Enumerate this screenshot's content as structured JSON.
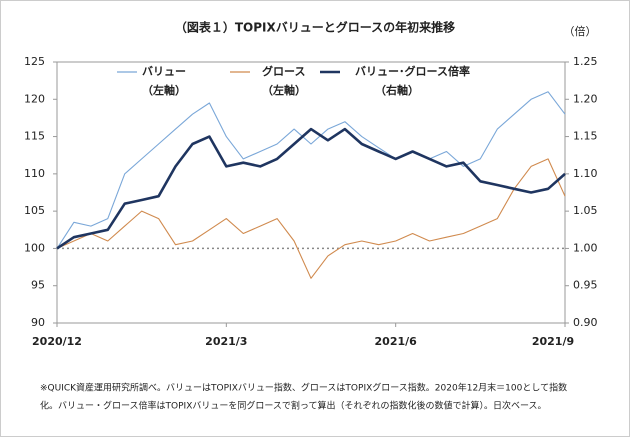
{
  "chart_data": {
    "type": "line",
    "title": "（図表１）TOPIXバリューとグロースの年初来推移",
    "y2_unit": "（倍）",
    "x": [
      0,
      0.3,
      0.6,
      0.9,
      1.2,
      1.5,
      1.8,
      2.1,
      2.4,
      2.7,
      3.0,
      3.3,
      3.6,
      3.9,
      4.2,
      4.5,
      4.8,
      5.1,
      5.4,
      5.7,
      6.0,
      6.3,
      6.6,
      6.9,
      7.2,
      7.5,
      7.8,
      8.1,
      8.4,
      8.7,
      9.0
    ],
    "xlim": [
      0,
      9
    ],
    "xticks": [
      {
        "value": 0,
        "label": "2020/12"
      },
      {
        "value": 3,
        "label": "2021/3"
      },
      {
        "value": 6,
        "label": "2021/6"
      },
      {
        "value": 9,
        "label": "2021/9"
      }
    ],
    "ylim": [
      90,
      125
    ],
    "yticks": [
      90,
      95,
      100,
      105,
      110,
      115,
      120,
      125
    ],
    "y2lim": [
      0.9,
      1.25
    ],
    "y2ticks": [
      {
        "value": 0.9,
        "label": "0.90"
      },
      0.95,
      {
        "value": 1.0,
        "label": "1.00"
      },
      1.05,
      {
        "value": 1.1,
        "label": "1.10"
      },
      1.15,
      {
        "value": 1.2,
        "label": "1.20"
      },
      1.25
    ],
    "reference_line": 100,
    "series": [
      {
        "name": "バリュー",
        "axis_note": "（左軸）",
        "color": "#7aa7d8",
        "values": [
          100,
          103.5,
          103,
          104,
          110,
          112,
          114,
          116,
          118,
          119.5,
          115,
          112,
          113,
          114,
          116,
          114,
          116,
          117,
          115,
          113.5,
          112,
          113,
          112,
          113,
          111,
          112,
          116,
          118,
          120,
          121,
          118
        ]
      },
      {
        "name": "グロース",
        "axis_note": "（左軸）",
        "color": "#d08a4e",
        "values": [
          100,
          101,
          102,
          101,
          103,
          105,
          104,
          100.5,
          101,
          102.5,
          104,
          102,
          103,
          104,
          101,
          96,
          99,
          100.5,
          101,
          100.5,
          101,
          102,
          101,
          101.5,
          102,
          103,
          104,
          108,
          111,
          112,
          107
        ]
      },
      {
        "name": "バリュー･グロース倍率",
        "axis_note": "（右軸）",
        "color": "#1f3560",
        "axis": "y2",
        "values": [
          1.0,
          1.015,
          1.02,
          1.025,
          1.06,
          1.065,
          1.07,
          1.11,
          1.14,
          1.15,
          1.11,
          1.115,
          1.11,
          1.12,
          1.14,
          1.16,
          1.145,
          1.16,
          1.14,
          1.13,
          1.12,
          1.13,
          1.12,
          1.11,
          1.115,
          1.09,
          1.085,
          1.08,
          1.075,
          1.08,
          1.1
        ]
      }
    ],
    "notes": [
      "※QUICK資産運用研究所調べ。バリューはTOPIXバリュー指数、グロースはTOPIXグロース指数。2020年12月末＝100として指数",
      "化。バリュー・グロース倍率はTOPIXバリューを同グロースで割って算出（それぞれの指数化後の数値で計算）。日次ベース。"
    ]
  }
}
